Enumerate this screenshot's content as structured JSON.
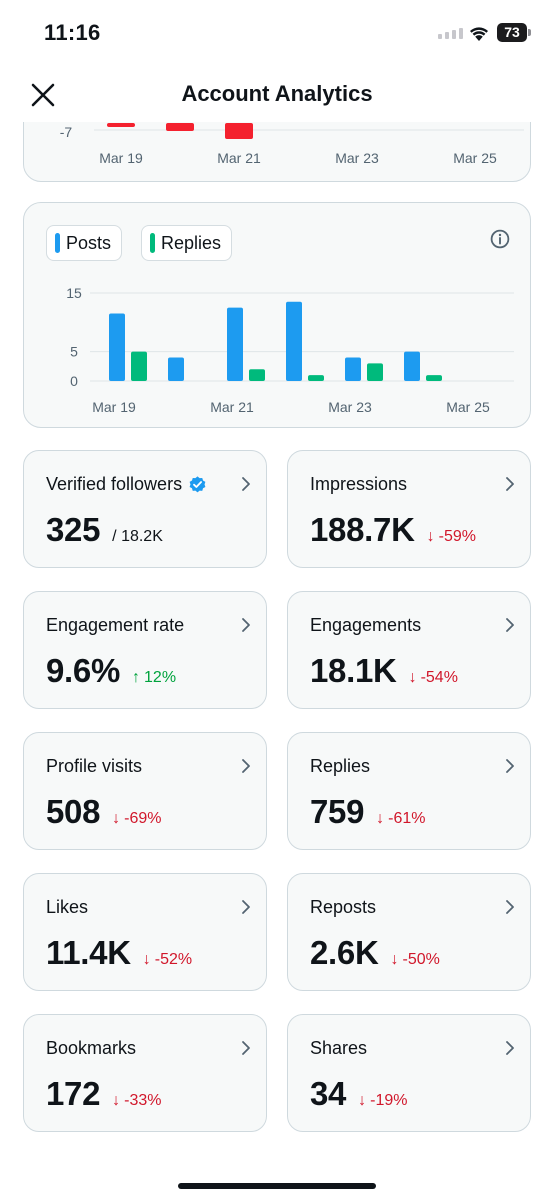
{
  "status_bar": {
    "time": "11:16",
    "battery": "73"
  },
  "header": {
    "title": "Account Analytics"
  },
  "chart_data": [
    {
      "type": "bar",
      "title": "",
      "y_tick_labels": [
        "-7"
      ],
      "x_tick_labels": [
        "Mar 19",
        "Mar 21",
        "Mar 23",
        "Mar 25"
      ],
      "categories": [
        "Mar 19",
        "Mar 20",
        "Mar 21",
        "Mar 22",
        "Mar 23",
        "Mar 24",
        "Mar 25"
      ],
      "series": [
        {
          "values": [
            -6,
            -7,
            -9,
            0,
            0,
            0,
            0
          ],
          "color": "#f4212e"
        }
      ],
      "note_visible": "chart partially scrolled; only bottom region visible"
    },
    {
      "type": "bar",
      "title": "",
      "legend": [
        "Posts",
        "Replies"
      ],
      "legend_placement": "top-left",
      "y_tick_labels": [
        "15",
        "5",
        "0"
      ],
      "ylim": [
        0,
        15
      ],
      "grid": true,
      "x_tick_labels": [
        "Mar 19",
        "Mar 21",
        "Mar 23",
        "Mar 25"
      ],
      "categories": [
        "Mar 19",
        "Mar 20",
        "Mar 21",
        "Mar 22",
        "Mar 23",
        "Mar 24",
        "Mar 25"
      ],
      "series": [
        {
          "name": "Posts",
          "values": [
            11.5,
            4,
            12.5,
            13.5,
            4,
            5,
            0
          ],
          "color": "#1d9bf0"
        },
        {
          "name": "Replies",
          "values": [
            5,
            0,
            2,
            1,
            3,
            1,
            0
          ],
          "color": "#00ba7c"
        }
      ]
    }
  ],
  "info_icon": "info-circle-icon",
  "tiles": [
    {
      "label": "Verified followers",
      "value": "325",
      "secondary": "/ 18.2K",
      "change": "",
      "direction": "",
      "badge": "verified-badge-icon"
    },
    {
      "label": "Impressions",
      "value": "188.7K",
      "secondary": "",
      "change": "-59%",
      "direction": "down",
      "arrow": "↓"
    },
    {
      "label": "Engagement rate",
      "value": "9.6%",
      "secondary": "",
      "change": "12%",
      "direction": "up",
      "arrow": "↑"
    },
    {
      "label": "Engagements",
      "value": "18.1K",
      "secondary": "",
      "change": "-54%",
      "direction": "down",
      "arrow": "↓"
    },
    {
      "label": "Profile visits",
      "value": "508",
      "secondary": "",
      "change": "-69%",
      "direction": "down",
      "arrow": "↓"
    },
    {
      "label": "Replies",
      "value": "759",
      "secondary": "",
      "change": "-61%",
      "direction": "down",
      "arrow": "↓"
    },
    {
      "label": "Likes",
      "value": "11.4K",
      "secondary": "",
      "change": "-52%",
      "direction": "down",
      "arrow": "↓"
    },
    {
      "label": "Reposts",
      "value": "2.6K",
      "secondary": "",
      "change": "-50%",
      "direction": "down",
      "arrow": "↓"
    },
    {
      "label": "Bookmarks",
      "value": "172",
      "secondary": "",
      "change": "-33%",
      "direction": "down",
      "arrow": "↓"
    },
    {
      "label": "Shares",
      "value": "34",
      "secondary": "",
      "change": "-19%",
      "direction": "down",
      "arrow": "↓"
    }
  ],
  "colors": {
    "accent": "#1d9bf0",
    "positive": "#00a33d",
    "negative": "#d1172b",
    "replies": "#00ba7c",
    "negative_bar": "#f4212e"
  }
}
